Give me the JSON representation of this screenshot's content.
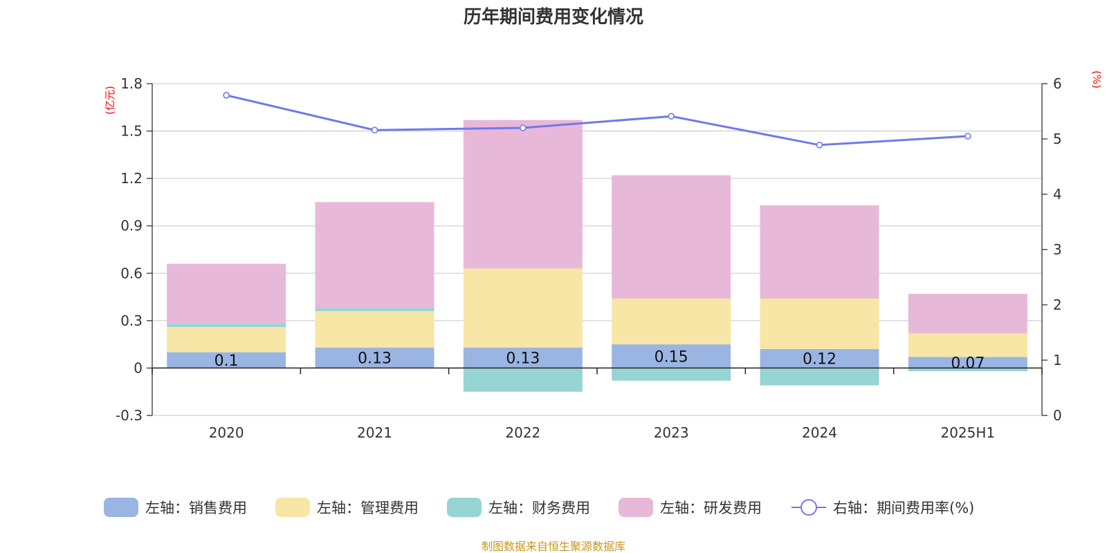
{
  "chart_data": {
    "type": "bar",
    "title": "历年期间费用变化情况",
    "categories": [
      "2020",
      "2021",
      "2022",
      "2023",
      "2024",
      "2025H1"
    ],
    "y_left": {
      "unit": "(亿元)",
      "lim": [
        -0.3,
        1.8
      ],
      "ticks": [
        "-0.3",
        "0",
        "0.3",
        "0.6",
        "0.9",
        "1.2",
        "1.5",
        "1.8"
      ]
    },
    "y_right": {
      "unit": "(%)",
      "lim": [
        0,
        6
      ],
      "ticks": [
        "0",
        "1",
        "2",
        "3",
        "4",
        "5",
        "6"
      ]
    },
    "series": [
      {
        "name": "左轴：销售费用",
        "kind": "bar",
        "axis": "left",
        "color": "#9bb5e2",
        "values": [
          0.1,
          0.13,
          0.13,
          0.15,
          0.12,
          0.07
        ],
        "labels": [
          "0.1",
          "0.13",
          "0.13",
          "0.15",
          "0.12",
          "0.07"
        ]
      },
      {
        "name": "左轴：管理费用",
        "kind": "bar",
        "axis": "left",
        "color": "#f7e6a6",
        "values": [
          0.16,
          0.23,
          0.5,
          0.29,
          0.32,
          0.15
        ]
      },
      {
        "name": "左轴：财务费用",
        "kind": "bar",
        "axis": "left",
        "color": "#97d4d4",
        "values": [
          0.02,
          0.02,
          -0.15,
          -0.08,
          -0.11,
          -0.02
        ]
      },
      {
        "name": "左轴：研发费用",
        "kind": "bar",
        "axis": "left",
        "color": "#e8b8d9",
        "values": [
          0.38,
          0.67,
          0.94,
          0.78,
          0.59,
          0.25
        ]
      },
      {
        "name": "右轴：期间费用率(%)",
        "kind": "line",
        "axis": "right",
        "color": "#7079e8",
        "values": [
          5.79,
          5.16,
          5.2,
          5.41,
          4.89,
          5.05
        ]
      }
    ],
    "grid": true,
    "legend": "bottom"
  },
  "footer": {
    "source": "制图数据来自恒生聚源数据库"
  }
}
